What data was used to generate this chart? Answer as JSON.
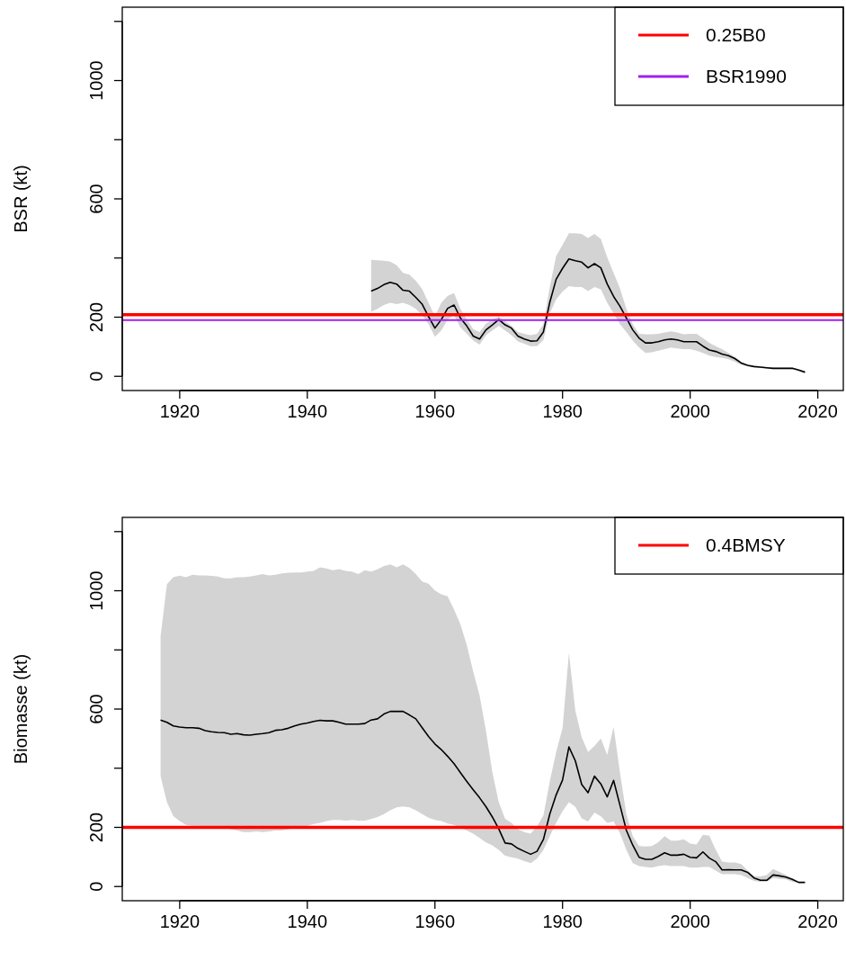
{
  "chart_data": [
    {
      "type": "line",
      "ylabel": "BSR (kt)",
      "xlim": [
        1911,
        2024
      ],
      "xticks": [
        1920,
        1940,
        1960,
        1980,
        2000,
        2020
      ],
      "ylim": [
        -48,
        1248
      ],
      "yticks": [
        0,
        200,
        {
          "value": 400,
          "label": null
        },
        600,
        {
          "value": 800,
          "label": null
        },
        1000,
        {
          "value": 1200,
          "label": null
        }
      ],
      "legend": "top right",
      "grid": false,
      "ref_lines": [
        {
          "axis": "y",
          "value": 208,
          "label": "0.25B0",
          "color": "#ff0000"
        },
        {
          "axis": "y",
          "value": 190,
          "label": "BSR1990",
          "color": "#a020f0"
        }
      ],
      "series": [
        {
          "color": "#000000",
          "x": [
            1950,
            1951,
            1952,
            1953,
            1954,
            1955,
            1956,
            1957,
            1958,
            1959,
            1960,
            1961,
            1962,
            1963,
            1964,
            1965,
            1966,
            1967,
            1968,
            1969,
            1970,
            1971,
            1972,
            1973,
            1974,
            1975,
            1976,
            1977,
            1978,
            1979,
            1980,
            1981,
            1982,
            1983,
            1984,
            1985,
            1986,
            1987,
            1988,
            1989,
            1990,
            1991,
            1992,
            1993,
            1994,
            1995,
            1996,
            1997,
            1998,
            1999,
            2000,
            2001,
            2002,
            2003,
            2004,
            2005,
            2006,
            2007,
            2008,
            2009,
            2010,
            2011,
            2012,
            2013,
            2014,
            2015,
            2016,
            2017,
            2018
          ],
          "values": [
            288,
            297,
            310,
            318,
            312,
            291,
            288,
            267,
            244,
            202,
            163,
            192,
            230,
            241,
            197,
            170,
            136,
            126,
            157,
            174,
            192,
            174,
            163,
            136,
            126,
            119,
            120,
            150,
            250,
            328,
            365,
            397,
            391,
            386,
            367,
            381,
            367,
            312,
            270,
            237,
            197,
            157,
            129,
            113,
            113,
            117,
            123,
            126,
            123,
            117,
            117,
            117,
            102,
            89,
            84,
            75,
            70,
            60,
            45,
            37,
            33,
            31,
            29,
            27,
            27,
            27,
            27,
            21,
            14
          ],
          "upper": [
            394,
            392,
            391,
            388,
            376,
            350,
            344,
            323,
            295,
            249,
            202,
            249,
            272,
            281,
            228,
            192,
            160,
            150,
            178,
            192,
            202,
            186,
            170,
            150,
            144,
            139,
            144,
            176,
            302,
            407,
            444,
            484,
            484,
            481,
            468,
            481,
            465,
            402,
            350,
            297,
            228,
            176,
            144,
            142,
            142,
            144,
            148,
            152,
            148,
            142,
            144,
            144,
            129,
            113,
            102,
            92,
            79,
            65,
            49,
            39,
            36,
            34,
            32,
            30,
            30,
            30,
            30,
            24,
            17
          ],
          "lower": [
            218,
            228,
            241,
            249,
            244,
            249,
            241,
            228,
            207,
            176,
            134,
            155,
            192,
            207,
            165,
            144,
            121,
            107,
            139,
            155,
            170,
            155,
            139,
            118,
            110,
            102,
            102,
            123,
            213,
            260,
            287,
            305,
            302,
            302,
            288,
            302,
            294,
            249,
            213,
            176,
            150,
            121,
            97,
            79,
            81,
            87,
            92,
            97,
            94,
            92,
            92,
            87,
            79,
            70,
            65,
            62,
            58,
            49,
            39,
            34,
            30,
            28,
            26,
            24,
            24,
            24,
            24,
            18,
            11
          ]
        }
      ]
    },
    {
      "type": "line",
      "ylabel": "Biomasse (kt)",
      "xlim": [
        1911,
        2024
      ],
      "xticks": [
        1920,
        1940,
        1960,
        1980,
        2000,
        2020
      ],
      "ylim": [
        -48,
        1248
      ],
      "yticks": [
        0,
        200,
        {
          "value": 400,
          "label": null
        },
        600,
        {
          "value": 800,
          "label": null
        },
        1000,
        {
          "value": 1200,
          "label": null
        }
      ],
      "legend": "top right",
      "grid": false,
      "ref_lines": [
        {
          "axis": "y",
          "value": 200,
          "label": "0.4BMSY",
          "color": "#ff0000"
        }
      ],
      "series": [
        {
          "color": "#000000",
          "x": [
            1917,
            1918,
            1919,
            1920,
            1921,
            1922,
            1923,
            1924,
            1925,
            1926,
            1927,
            1928,
            1929,
            1930,
            1931,
            1932,
            1933,
            1934,
            1935,
            1936,
            1937,
            1938,
            1939,
            1940,
            1941,
            1942,
            1943,
            1944,
            1945,
            1946,
            1947,
            1948,
            1949,
            1950,
            1951,
            1952,
            1953,
            1954,
            1955,
            1956,
            1957,
            1958,
            1959,
            1960,
            1961,
            1962,
            1963,
            1964,
            1965,
            1966,
            1967,
            1968,
            1969,
            1970,
            1971,
            1972,
            1973,
            1974,
            1975,
            1976,
            1977,
            1978,
            1979,
            1980,
            1981,
            1982,
            1983,
            1984,
            1985,
            1986,
            1987,
            1988,
            1989,
            1990,
            1991,
            1992,
            1993,
            1994,
            1995,
            1996,
            1997,
            1998,
            1999,
            2000,
            2001,
            2002,
            2003,
            2004,
            2005,
            2006,
            2007,
            2008,
            2009,
            2010,
            2011,
            2012,
            2013,
            2014,
            2015,
            2016,
            2017,
            2018
          ],
          "values": [
            563,
            555,
            543,
            539,
            537,
            537,
            535,
            527,
            523,
            521,
            520,
            515,
            517,
            513,
            512,
            515,
            517,
            520,
            528,
            530,
            535,
            543,
            549,
            553,
            558,
            562,
            560,
            560,
            555,
            549,
            549,
            549,
            551,
            563,
            567,
            583,
            592,
            592,
            592,
            580,
            567,
            537,
            507,
            482,
            463,
            440,
            415,
            385,
            355,
            327,
            300,
            270,
            235,
            195,
            147,
            144,
            129,
            119,
            109,
            119,
            159,
            245,
            310,
            360,
            472,
            425,
            345,
            317,
            373,
            347,
            303,
            359,
            275,
            190,
            140,
            99,
            92,
            92,
            102,
            114,
            106,
            106,
            109,
            99,
            97,
            117,
            96,
            84,
            56,
            57,
            56,
            56,
            48,
            29,
            21,
            21,
            39,
            36,
            32,
            24,
            14,
            14
          ],
          "upper": [
            846,
            1022,
            1046,
            1051,
            1046,
            1054,
            1052,
            1052,
            1050,
            1048,
            1042,
            1042,
            1046,
            1046,
            1048,
            1052,
            1056,
            1052,
            1054,
            1059,
            1061,
            1062,
            1062,
            1065,
            1067,
            1079,
            1075,
            1069,
            1073,
            1067,
            1065,
            1056,
            1069,
            1065,
            1072,
            1084,
            1089,
            1079,
            1089,
            1077,
            1056,
            1031,
            1024,
            1001,
            988,
            981,
            936,
            886,
            816,
            726,
            646,
            526,
            386,
            285,
            229,
            215,
            194,
            184,
            179,
            204,
            240,
            355,
            455,
            535,
            790,
            595,
            505,
            455,
            475,
            500,
            445,
            540,
            385,
            245,
            170,
            137,
            135,
            137,
            150,
            170,
            155,
            155,
            160,
            145,
            142,
            175,
            172,
            125,
            84,
            81,
            81,
            76,
            54,
            36,
            34,
            39,
            59,
            49,
            39,
            29,
            16,
            16
          ],
          "lower": [
            373,
            285,
            238,
            221,
            208,
            205,
            205,
            203,
            202,
            199,
            197,
            194,
            189,
            184,
            184,
            186,
            184,
            186,
            189,
            189,
            194,
            199,
            203,
            205,
            211,
            215,
            221,
            225,
            225,
            223,
            225,
            223,
            223,
            228,
            235,
            245,
            258,
            268,
            271,
            268,
            258,
            245,
            233,
            225,
            221,
            213,
            208,
            199,
            189,
            179,
            164,
            149,
            139,
            124,
            104,
            99,
            94,
            86,
            79,
            94,
            124,
            170,
            215,
            255,
            285,
            270,
            230,
            220,
            250,
            237,
            215,
            220,
            180,
            124,
            79,
            69,
            66,
            64,
            69,
            72,
            69,
            69,
            69,
            64,
            64,
            66,
            66,
            54,
            42,
            42,
            42,
            39,
            29,
            19,
            16,
            16,
            29,
            26,
            24,
            16,
            12,
            12
          ]
        }
      ]
    }
  ]
}
